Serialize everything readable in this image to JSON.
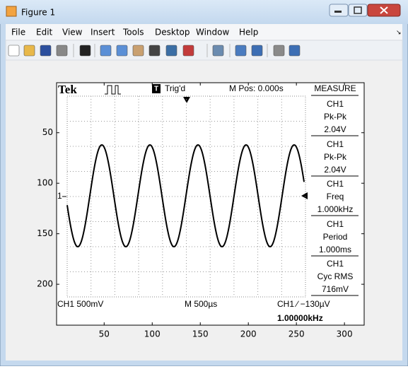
{
  "window": {
    "title": "Figure 1"
  },
  "menu": [
    "File",
    "Edit",
    "View",
    "Insert",
    "Tools",
    "Desktop",
    "Window",
    "Help"
  ],
  "axes": {
    "xlim": [
      0.5,
      320.5
    ],
    "ylim": [
      0.5,
      240.5
    ],
    "xticks": [
      50,
      100,
      150,
      200,
      250,
      300
    ],
    "yticks": [
      50,
      100,
      150,
      200
    ],
    "reversed_y": true
  },
  "scope": {
    "brand": "Tek",
    "trigger_icon": "T",
    "trigger": "Trig'd",
    "position": "M Pos: 0.000s",
    "measure_title": "MEASURE",
    "measurements": [
      {
        "source": "CH1",
        "name": "Pk-Pk",
        "value": "2.04V"
      },
      {
        "source": "CH1",
        "name": "Pk-Pk",
        "value": "2.04V"
      },
      {
        "source": "CH1",
        "name": "Freq",
        "value": "1.000kHz"
      },
      {
        "source": "CH1",
        "name": "Period",
        "value": "1.000ms"
      },
      {
        "source": "CH1",
        "name": "Cyc RMS",
        "value": "716mV"
      }
    ],
    "ch1_marker": "1",
    "ch1_scale": "CH1  500mV",
    "timebase": "M 500µs",
    "trigger_level": "CH1 ∕ −130µV",
    "frequency": "1.00000kHz"
  }
}
